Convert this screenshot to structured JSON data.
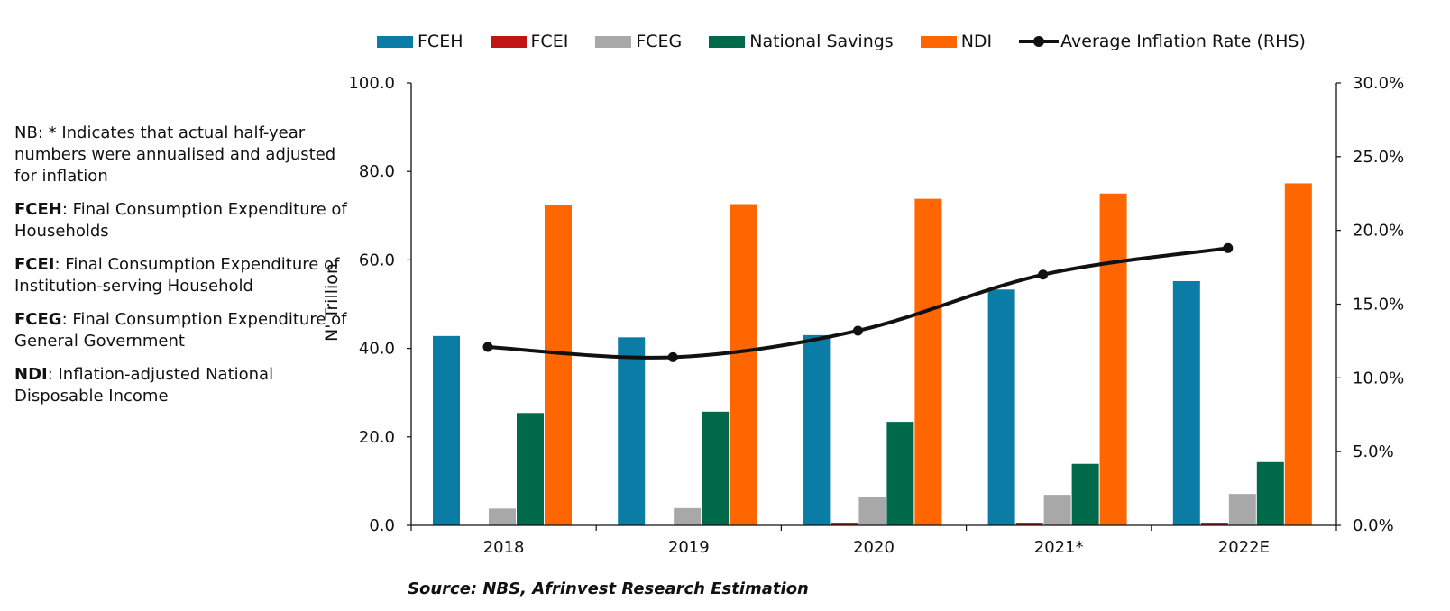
{
  "notes": {
    "nb": "NB: * Indicates that actual half-year numbers were annualised and adjusted for inflation",
    "items": [
      {
        "term": "FCEH",
        "text": ": Final Consumption Expenditure of Households"
      },
      {
        "term": "FCEI",
        "text": ": Final Consumption Expenditure of Institution-serving Household"
      },
      {
        "term": "FCEG",
        "text": ": Final Consumption Expenditure of General Government"
      },
      {
        "term": "NDI",
        "text": ": Inflation-adjusted National Disposable Income"
      }
    ]
  },
  "source": "Source: NBS, Afrinvest Research Estimation",
  "chart_data": {
    "type": "bar",
    "categories": [
      "2018",
      "2019",
      "2020",
      "2021*",
      "2022E"
    ],
    "series": [
      {
        "name": "FCEH",
        "type": "bar",
        "axis": "left",
        "color": "#0a7ca6",
        "values": [
          42.8,
          42.5,
          43.0,
          53.3,
          55.2
        ]
      },
      {
        "name": "FCEI",
        "type": "bar",
        "axis": "left",
        "color": "#c01515",
        "values": [
          0.1,
          0.1,
          0.6,
          0.6,
          0.6
        ]
      },
      {
        "name": "FCEG",
        "type": "bar",
        "axis": "left",
        "color": "#a8a8a8",
        "values": [
          3.8,
          3.9,
          6.5,
          6.9,
          7.1
        ]
      },
      {
        "name": "National Savings",
        "type": "bar",
        "axis": "left",
        "color": "#00694a",
        "values": [
          25.4,
          25.7,
          23.4,
          13.9,
          14.3
        ]
      },
      {
        "name": "NDI",
        "type": "bar",
        "axis": "left",
        "color": "#ff6600",
        "values": [
          72.4,
          72.6,
          73.8,
          75.0,
          77.3
        ]
      },
      {
        "name": "Average Inflation Rate (RHS)",
        "type": "line",
        "axis": "right",
        "color": "#111111",
        "values": [
          12.1,
          11.4,
          13.2,
          17.0,
          18.8
        ]
      }
    ],
    "ylabel": "N' Trillion",
    "ylim": [
      0,
      100
    ],
    "yticks": [
      "0.0",
      "20.0",
      "40.0",
      "60.0",
      "80.0",
      "100.0"
    ],
    "y2lim": [
      0,
      30
    ],
    "y2ticks": [
      "0.0%",
      "5.0%",
      "10.0%",
      "15.0%",
      "20.0%",
      "25.0%",
      "30.0%"
    ],
    "legend_position": "top",
    "grid": false
  }
}
